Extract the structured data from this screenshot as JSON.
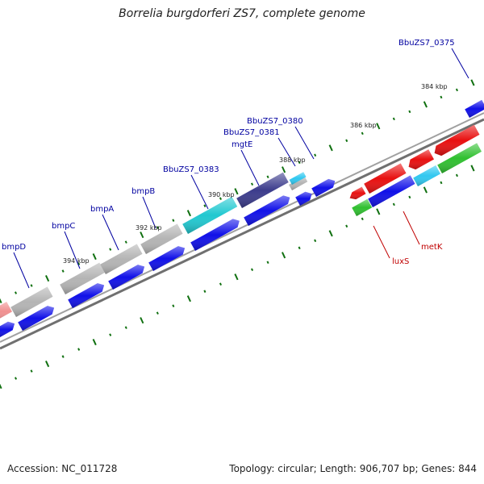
{
  "title": "Borrelia burgdorferi ZS7, complete genome",
  "footer": {
    "accession": "Accession: NC_011728",
    "info": "Topology: circular; Length: 906,707 bp; Genes: 844"
  },
  "colors": {
    "cds_blue": "#1010e8",
    "gray": "#b4b4b4",
    "cyan": "#20c8d0",
    "navy": "#3c3c8c",
    "red": "#e81010",
    "green": "#30c030",
    "light_red": "#f09090",
    "sky": "#30c8f0",
    "backbone": "#808080",
    "ticks": "#107010",
    "label_blue": "#0000a0",
    "label_red": "#c00000"
  },
  "scale_labels": [
    "384 kbp",
    "386 kbp",
    "388 kbp",
    "390 kbp",
    "392 kbp",
    "394 kbp"
  ],
  "gene_labels": [
    {
      "text": "BbuZS7_0375",
      "color": "label_blue"
    },
    {
      "text": "BbuZS7_0380",
      "color": "label_blue"
    },
    {
      "text": "BbuZS7_0381",
      "color": "label_blue"
    },
    {
      "text": "mgtE",
      "color": "label_blue"
    },
    {
      "text": "BbuZS7_0383",
      "color": "label_blue"
    },
    {
      "text": "bmpB",
      "color": "label_blue"
    },
    {
      "text": "bmpA",
      "color": "label_blue"
    },
    {
      "text": "bmpC",
      "color": "label_blue"
    },
    {
      "text": "bmpD",
      "color": "label_blue"
    },
    {
      "text": "metK",
      "color": "label_red"
    },
    {
      "text": "luxS",
      "color": "label_red"
    }
  ]
}
